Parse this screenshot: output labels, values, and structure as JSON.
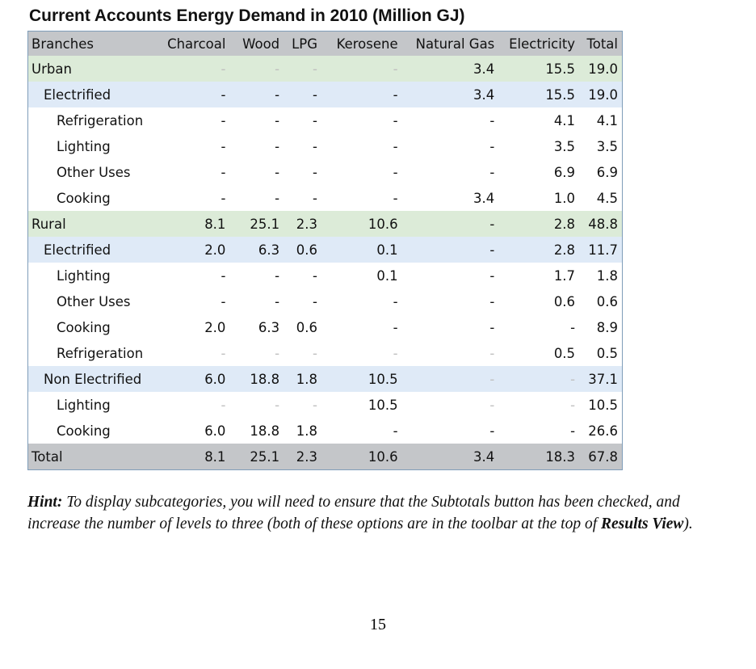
{
  "title": "Current Accounts Energy Demand in 2010 (Million GJ)",
  "table": {
    "columns": [
      "Branches",
      "Charcoal",
      "Wood",
      "LPG",
      "Kerosene",
      "Natural Gas",
      "Electricity",
      "Total"
    ],
    "rows": [
      {
        "level": 0,
        "style": "hl-green",
        "faint": true,
        "cells": [
          "Urban",
          "-",
          "-",
          "-",
          "-",
          "3.4",
          "15.5",
          "19.0"
        ]
      },
      {
        "level": 1,
        "style": "hl-blue",
        "faint": false,
        "cells": [
          "Electrified",
          "-",
          "-",
          "-",
          "-",
          "3.4",
          "15.5",
          "19.0"
        ]
      },
      {
        "level": 2,
        "style": "",
        "faint": false,
        "cells": [
          "Refrigeration",
          "-",
          "-",
          "-",
          "-",
          "-",
          "4.1",
          "4.1"
        ]
      },
      {
        "level": 2,
        "style": "",
        "faint": false,
        "cells": [
          "Lighting",
          "-",
          "-",
          "-",
          "-",
          "-",
          "3.5",
          "3.5"
        ]
      },
      {
        "level": 2,
        "style": "",
        "faint": false,
        "cells": [
          "Other Uses",
          "-",
          "-",
          "-",
          "-",
          "-",
          "6.9",
          "6.9"
        ]
      },
      {
        "level": 2,
        "style": "",
        "faint": false,
        "cells": [
          "Cooking",
          "-",
          "-",
          "-",
          "-",
          "3.4",
          "1.0",
          "4.5"
        ]
      },
      {
        "level": 0,
        "style": "hl-green",
        "faint": false,
        "cells": [
          "Rural",
          "8.1",
          "25.1",
          "2.3",
          "10.6",
          "-",
          "2.8",
          "48.8"
        ]
      },
      {
        "level": 1,
        "style": "hl-blue",
        "faint": false,
        "cells": [
          "Electrified",
          "2.0",
          "6.3",
          "0.6",
          "0.1",
          "-",
          "2.8",
          "11.7"
        ]
      },
      {
        "level": 2,
        "style": "",
        "faint": false,
        "cells": [
          "Lighting",
          "-",
          "-",
          "-",
          "0.1",
          "-",
          "1.7",
          "1.8"
        ]
      },
      {
        "level": 2,
        "style": "",
        "faint": false,
        "cells": [
          "Other Uses",
          "-",
          "-",
          "-",
          "-",
          "-",
          "0.6",
          "0.6"
        ]
      },
      {
        "level": 2,
        "style": "",
        "faint": false,
        "cells": [
          "Cooking",
          "2.0",
          "6.3",
          "0.6",
          "-",
          "-",
          "-",
          "8.9"
        ]
      },
      {
        "level": 2,
        "style": "",
        "faint": true,
        "cells": [
          "Refrigeration",
          "-",
          "-",
          "-",
          "-",
          "-",
          "0.5",
          "0.5"
        ]
      },
      {
        "level": 1,
        "style": "hl-blue",
        "faint": true,
        "cells": [
          "Non Electrified",
          "6.0",
          "18.8",
          "1.8",
          "10.5",
          "-",
          "-",
          "37.1"
        ]
      },
      {
        "level": 2,
        "style": "",
        "faint": true,
        "cells": [
          "Lighting",
          "-",
          "-",
          "-",
          "10.5",
          "-",
          "-",
          "10.5"
        ]
      },
      {
        "level": 2,
        "style": "",
        "faint": false,
        "cells": [
          "Cooking",
          "6.0",
          "18.8",
          "1.8",
          "-",
          "-",
          "-",
          "26.6"
        ]
      },
      {
        "level": 0,
        "style": "total",
        "faint": false,
        "cells": [
          "Total",
          "8.1",
          "25.1",
          "2.3",
          "10.6",
          "3.4",
          "18.3",
          "67.8"
        ]
      }
    ]
  },
  "hint": {
    "label": "Hint:",
    "text_before": " To display subcategories, you will need to ensure that the Subtotals button has been checked, and increase the number of levels to three (both of these options are in the toolbar at the top of ",
    "bold_term": "Results View",
    "text_after": ")."
  },
  "page_number": "15"
}
